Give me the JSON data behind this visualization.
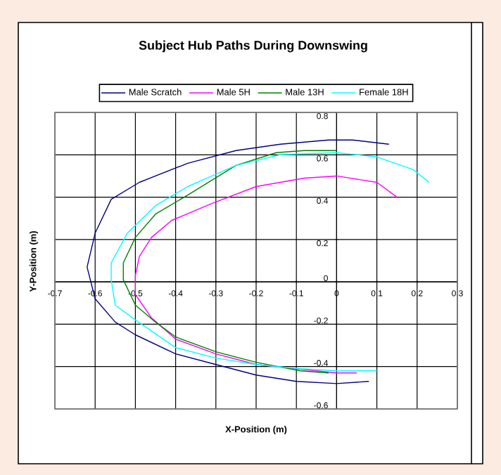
{
  "chart_data": {
    "type": "line",
    "title": "Subject Hub Paths During Downswing",
    "xlabel": "X-Position (m)",
    "ylabel": "Y-Position (m)",
    "xlim": [
      -0.7,
      0.3
    ],
    "xticks": [
      -0.7,
      -0.6,
      -0.5,
      -0.4,
      -0.3,
      -0.2,
      -0.1,
      0,
      0.1,
      0.2,
      0.3
    ],
    "ylim": [
      -0.6,
      0.8
    ],
    "yticks": [
      -0.6,
      -0.4,
      -0.2,
      0,
      0.2,
      0.4,
      0.6,
      0.8
    ],
    "grid": true,
    "legend": "top",
    "marker": "none",
    "line_style": "solid",
    "series": [
      {
        "name": "Male Scratch",
        "color": "#000080",
        "x": [
          0.13,
          0.04,
          -0.02,
          -0.14,
          -0.25,
          -0.37,
          -0.49,
          -0.56,
          -0.6,
          -0.62,
          -0.6,
          -0.55,
          -0.5,
          -0.4,
          -0.3,
          -0.2,
          -0.1,
          0,
          0.08
        ],
        "values": [
          0.65,
          0.67,
          0.67,
          0.65,
          0.62,
          0.56,
          0.47,
          0.39,
          0.23,
          0.07,
          -0.08,
          -0.19,
          -0.25,
          -0.34,
          -0.39,
          -0.44,
          -0.47,
          -0.48,
          -0.47
        ]
      },
      {
        "name": "Male 5H",
        "color": "#ff00ff",
        "x": [
          0.15,
          0.1,
          0,
          -0.08,
          -0.2,
          -0.31,
          -0.41,
          -0.46,
          -0.49,
          -0.5,
          -0.5,
          -0.46,
          -0.4,
          -0.3,
          -0.2,
          -0.1,
          0,
          0.05
        ],
        "values": [
          0.4,
          0.47,
          0.5,
          0.49,
          0.45,
          0.37,
          0.29,
          0.21,
          0.12,
          0.03,
          -0.06,
          -0.17,
          -0.27,
          -0.34,
          -0.39,
          -0.41,
          -0.43,
          -0.43
        ]
      },
      {
        "name": "Male 13H",
        "color": "#008000",
        "x": [
          0,
          -0.08,
          -0.15,
          -0.25,
          -0.37,
          -0.45,
          -0.5,
          -0.53,
          -0.53,
          -0.5,
          -0.45,
          -0.4,
          -0.3,
          -0.2,
          -0.09,
          -0.02
        ],
        "values": [
          0.62,
          0.62,
          0.61,
          0.55,
          0.41,
          0.32,
          0.21,
          0.09,
          0.01,
          -0.11,
          -0.19,
          -0.26,
          -0.33,
          -0.38,
          -0.42,
          -0.43
        ]
      },
      {
        "name": "Female 18H",
        "color": "#00ffff",
        "x": [
          0.23,
          0.19,
          0.1,
          0,
          -0.14,
          -0.25,
          -0.37,
          -0.45,
          -0.52,
          -0.56,
          -0.56,
          -0.55,
          -0.5,
          -0.4,
          -0.3,
          -0.2,
          -0.09,
          0,
          0.1
        ],
        "values": [
          0.47,
          0.53,
          0.59,
          0.61,
          0.6,
          0.55,
          0.45,
          0.36,
          0.23,
          0.09,
          0.01,
          -0.11,
          -0.18,
          -0.31,
          -0.36,
          -0.39,
          -0.41,
          -0.42,
          -0.42
        ]
      }
    ]
  }
}
